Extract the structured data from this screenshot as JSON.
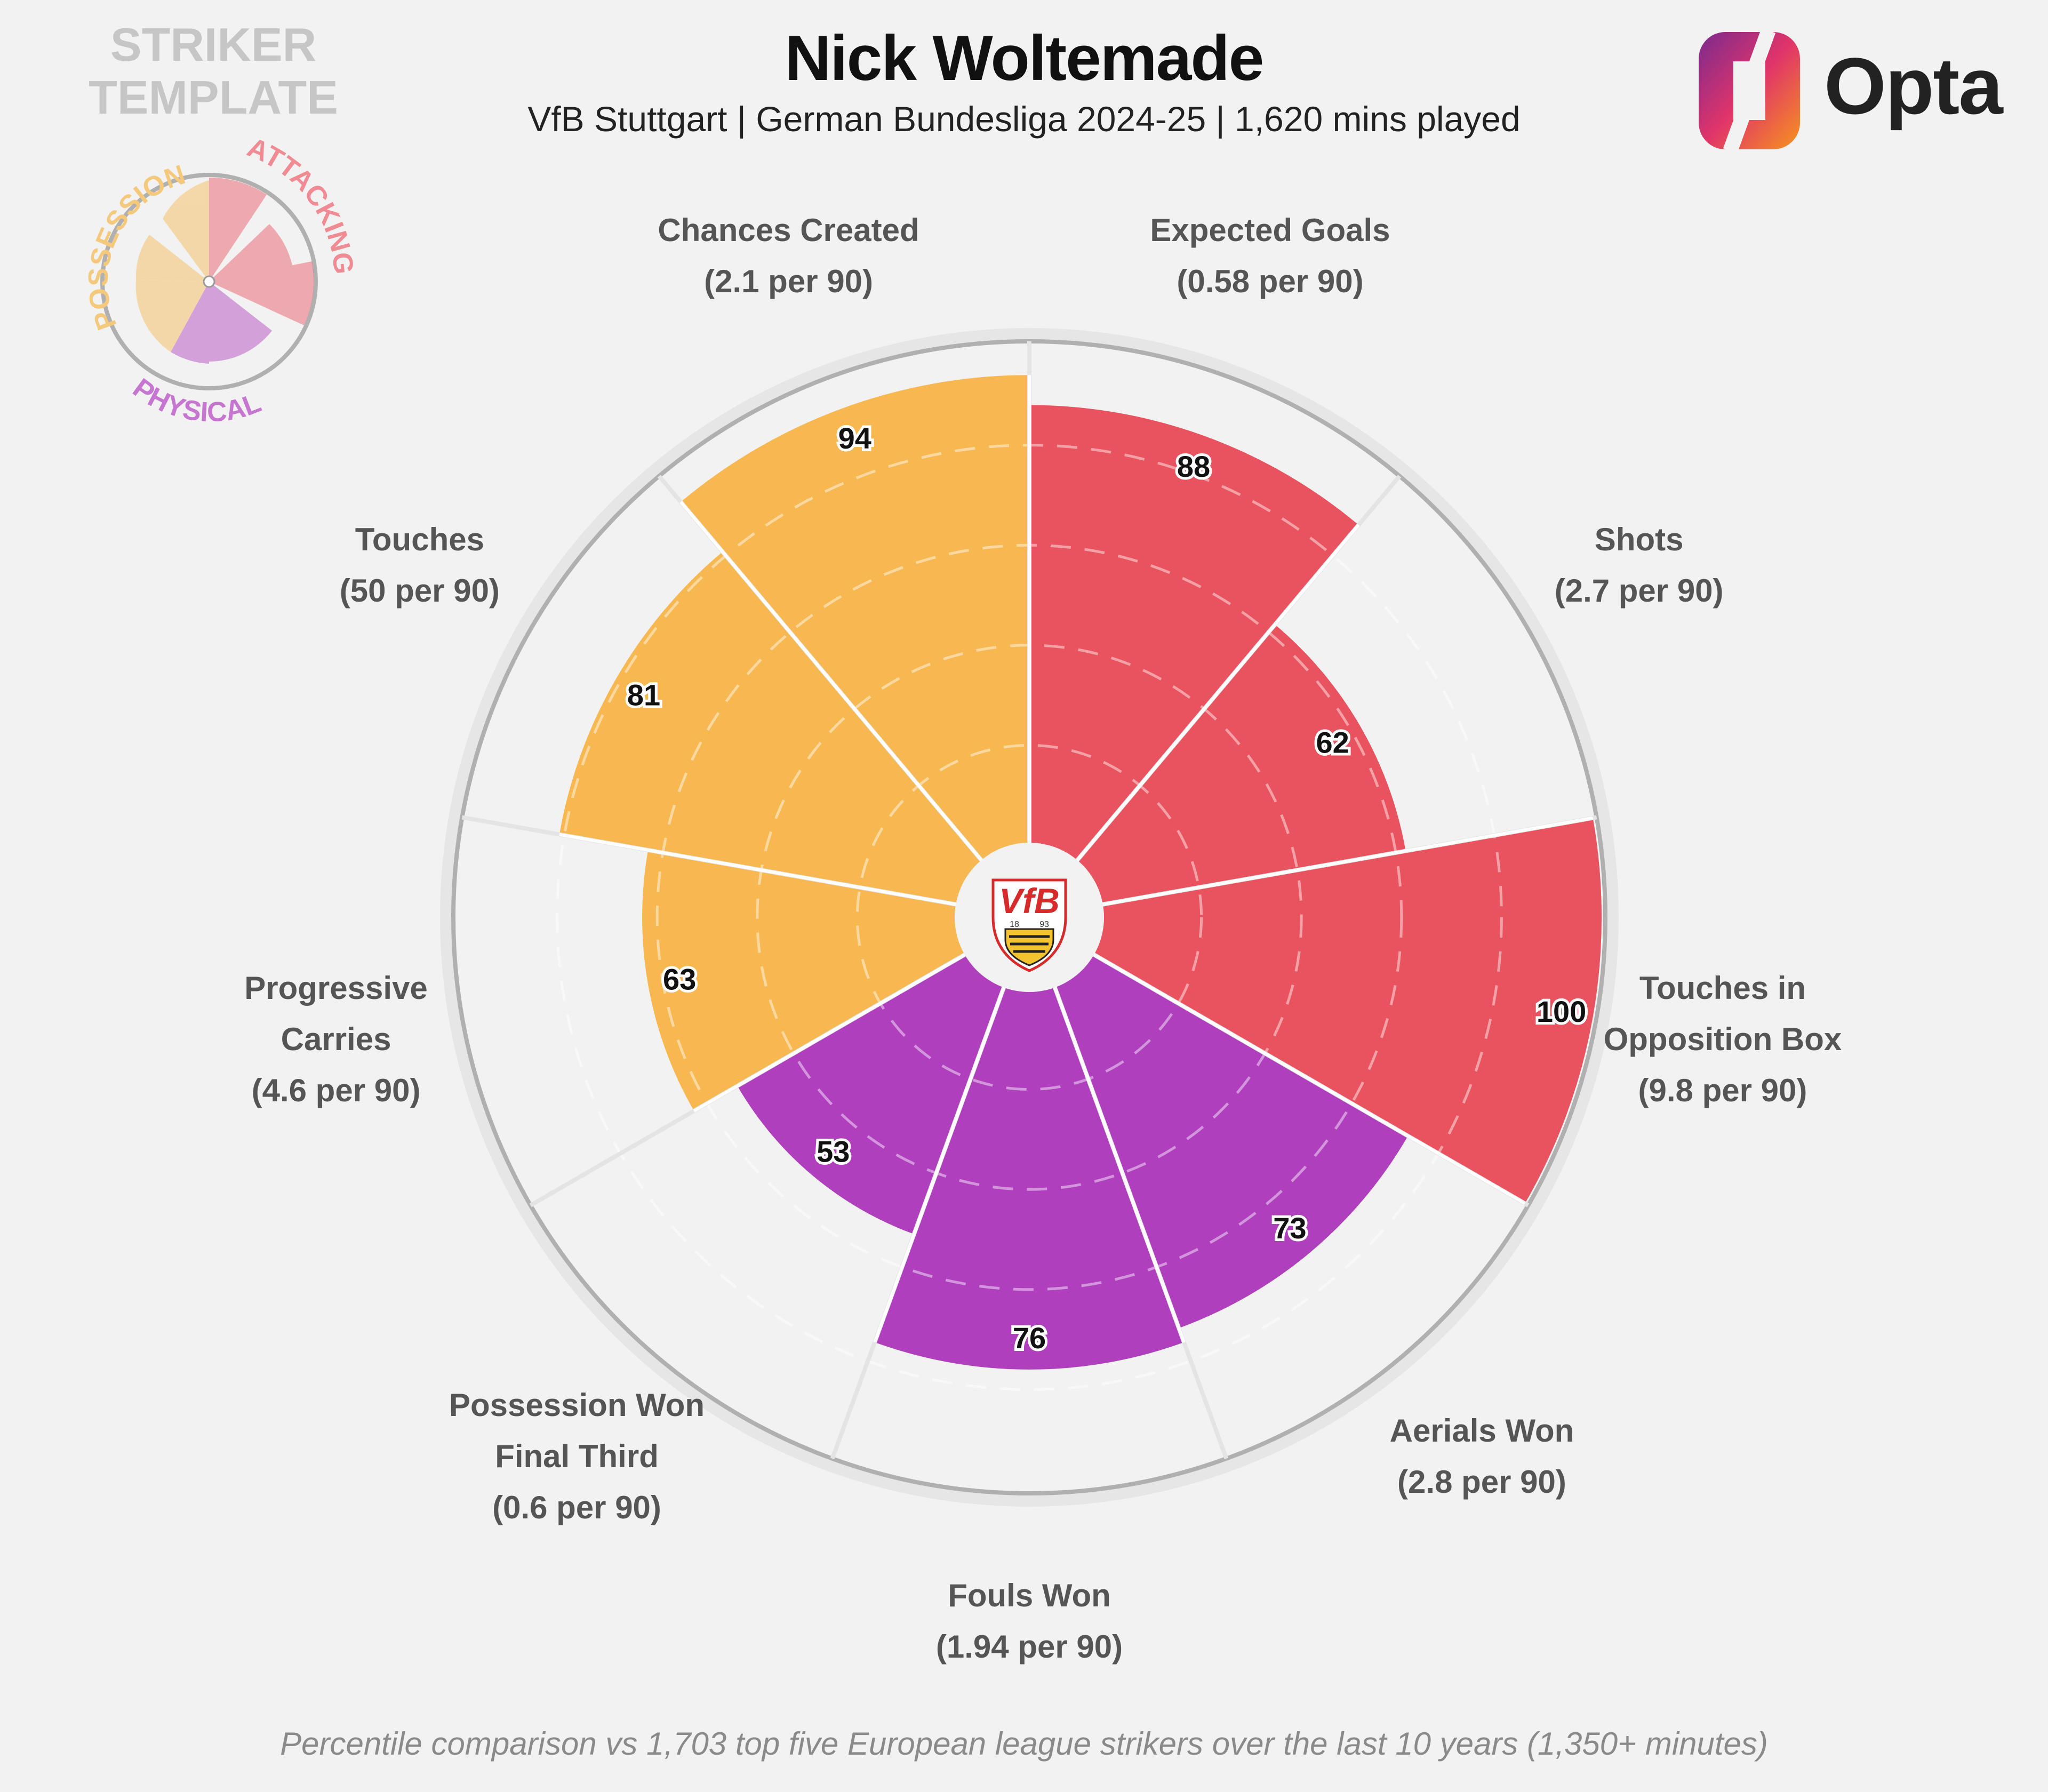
{
  "header": {
    "title": "Nick Woltemade",
    "subtitle": "VfB Stuttgart | German Bundesliga 2024-25 | 1,620 mins played",
    "template_label_line1": "STRIKER",
    "template_label_line2": "TEMPLATE",
    "brand": "Opta"
  },
  "legend": {
    "possession": "POSSESSION",
    "attacking": "ATTACKING",
    "physical": "PHYSICAL"
  },
  "crest": {
    "letters": "VfB",
    "year_left": "18",
    "year_right": "93"
  },
  "footer": "Percentile comparison vs 1,703 top five European league strikers over the last 10 years (1,350+ minutes)",
  "colors": {
    "attacking": "#e9535f",
    "possession": "#f8b851",
    "physical": "#b03fbe",
    "background": "#f2f2f2",
    "ring": "#b0b0b0"
  },
  "chart_data": {
    "type": "polar-bar",
    "rmax": 100,
    "segments": [
      {
        "label_lines": [
          "Expected Goals",
          "(0.58 per 90)"
        ],
        "value": 88,
        "group": "attacking"
      },
      {
        "label_lines": [
          "Shots",
          "(2.7 per 90)"
        ],
        "value": 62,
        "group": "attacking"
      },
      {
        "label_lines": [
          "Touches in",
          "Opposition Box",
          "(9.8 per 90)"
        ],
        "value": 100,
        "group": "attacking"
      },
      {
        "label_lines": [
          "Aerials Won",
          "(2.8 per 90)"
        ],
        "value": 73,
        "group": "physical"
      },
      {
        "label_lines": [
          "Fouls Won",
          "(1.94 per 90)"
        ],
        "value": 76,
        "group": "physical"
      },
      {
        "label_lines": [
          "Possession Won",
          "Final Third",
          "(0.6 per 90)"
        ],
        "value": 53,
        "group": "physical"
      },
      {
        "label_lines": [
          "Progressive",
          "Carries",
          "(4.6 per 90)"
        ],
        "value": 63,
        "group": "possession"
      },
      {
        "label_lines": [
          "Touches",
          "(50 per 90)"
        ],
        "value": 81,
        "group": "possession"
      },
      {
        "label_lines": [
          "Chances Created",
          "(2.1 per 90)"
        ],
        "value": 94,
        "group": "possession"
      }
    ]
  }
}
